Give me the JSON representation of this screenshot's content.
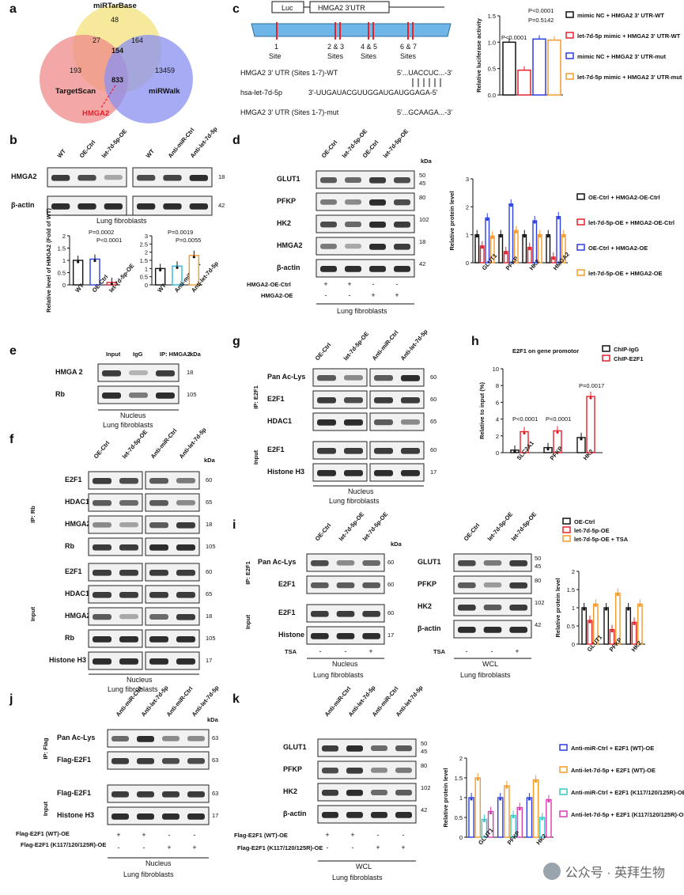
{
  "panels": {
    "a": {
      "label": "a",
      "sets": [
        "miRTarBase",
        "TargetScan",
        "miRWalk"
      ],
      "counts": [
        "48",
        "27",
        "164",
        "154",
        "193",
        "833",
        "13459"
      ],
      "target": "HMGA2"
    },
    "b": {
      "label": "b",
      "lanes_left": [
        "WT",
        "OE-Ctrl",
        "let-7d-5p-OE"
      ],
      "lanes_right": [
        "WT",
        "Anti-miR-Ctrl",
        "Anti-let-7d-5p"
      ],
      "rows": [
        "HMGA2",
        "β-actin"
      ],
      "kda": [
        "18",
        "42"
      ],
      "caption": "Lung fibroblasts",
      "ylabel": "Relative level of HMGA2 (Fold of WT)",
      "pvals": [
        "P=0.0002",
        "P<0.0001",
        "P=0.0019",
        "P=0.0055"
      ]
    },
    "c": {
      "label": "c",
      "luc": "Luc",
      "utr": "HMGA2 3'UTR",
      "sites": [
        "1\nSite",
        "2 & 3\nSites",
        "4 & 5\nSites",
        "6 & 7\nSites"
      ],
      "site_labels": [
        "1",
        "2 & 3",
        "4 & 5",
        "6 & 7"
      ],
      "site_word": [
        "Site",
        "Sites",
        "Sites",
        "Sites"
      ],
      "seq_wt_label": "HMGA2 3' UTR (Sites 1-7)-WT",
      "seq_wt": "5'...UACCUC...-3'",
      "mir_label": "hsa-let-7d-5p",
      "mir_seq": "3'-UUGAUACGUUGGAUGAUGGAGA-5'",
      "mut_label": "HMGA2 3' UTR (Sites 1-7)-mut",
      "mut_seq": "5'...GCAAGA...-3'",
      "ylabel": "Relative luciferase activity",
      "pvals": [
        "P<0.0001",
        "P<0.0001",
        "P=0.5142"
      ],
      "legend": [
        {
          "name": "mimic NC + HMGA2 3' UTR-WT",
          "color": "#111111"
        },
        {
          "name": "let-7d-5p mimic + HMGA2 3' UTR-WT",
          "color": "#e8202a"
        },
        {
          "name": "mimic NC + HMGA2 3' UTR-mut",
          "color": "#2a3fe0"
        },
        {
          "name": "let-7d-5p mimic + HMGA2 3' UTR-mut",
          "color": "#f39a2b"
        }
      ]
    },
    "d": {
      "label": "d",
      "lanes": [
        "OE-Ctrl",
        "let-7d-5p-OE",
        "OE-Ctrl",
        "let-7d-5p-OE"
      ],
      "rows": [
        "GLUT1",
        "PFKP",
        "HK2",
        "HMGA2",
        "β-actin"
      ],
      "kda_title": "kDa",
      "kda": [
        "50",
        "45",
        "80",
        "102",
        "18",
        "42"
      ],
      "ctrl_row": "HMGA2-OE-Ctrl",
      "oe_row": "HMGA2-OE",
      "ctrl_marks": [
        "+",
        "+",
        "-",
        "-"
      ],
      "oe_marks": [
        "-",
        "-",
        "+",
        "+"
      ],
      "caption": "Lung fibroblasts",
      "ylabel": "Relative protein level",
      "categories": [
        "GLUT1",
        "PFKP",
        "HK2",
        "HMGA2"
      ],
      "legend": [
        {
          "name": "OE-Ctrl + HMGA2-OE-Ctrl",
          "color": "#111111"
        },
        {
          "name": "let-7d-5p-OE + HMGA2-OE-Ctrl",
          "color": "#e8202a"
        },
        {
          "name": "OE-Ctrl + HMGA2-OE",
          "color": "#2a3fe0"
        },
        {
          "name": "let-7d-5p-OE + HMGA2-OE",
          "color": "#f39a2b"
        }
      ]
    },
    "e": {
      "label": "e",
      "lanes": [
        "Input",
        "IgG",
        "IP: HMGA2"
      ],
      "rows": [
        "HMGA 2",
        "Rb"
      ],
      "kda": [
        "18",
        "105"
      ],
      "caption1": "Nucleus",
      "caption2": "Lung fibroblasts"
    },
    "f": {
      "label": "f",
      "lanes": [
        "OE-Ctrl",
        "let-7d-5p-OE",
        "Anti-miR-Ctrl",
        "Anti-let-7d-5p"
      ],
      "ip_label": "IP: Rb",
      "input_label": "Input",
      "rows_ip": [
        "E2F1",
        "HDAC1",
        "HMGA2",
        "Rb"
      ],
      "rows_input": [
        "E2F1",
        "HDAC1",
        "HMGA2",
        "Rb",
        "Histone H3"
      ],
      "kda_ip": [
        "60",
        "65",
        "18",
        "105"
      ],
      "kda_input": [
        "60",
        "65",
        "18",
        "105",
        "17"
      ],
      "caption1": "Nucleus",
      "caption2": "Lung fibroblasts"
    },
    "g": {
      "label": "g",
      "lanes": [
        "OE-Ctrl",
        "let-7d-5p-OE",
        "Anti-miR-Ctrl",
        "Anti-let-7d-5p"
      ],
      "ip_label": "IP: E2F1",
      "input_label": "Input",
      "rows": [
        "Pan Ac-Lys",
        "E2F1",
        "HDAC1",
        "E2F1",
        "Histone H3"
      ],
      "kda": [
        "60",
        "60",
        "65",
        "60",
        "17"
      ],
      "caption1": "Nucleus",
      "caption2": "Lung fibroblasts"
    },
    "h": {
      "label": "h",
      "title": "E2F1 on gene promotor",
      "ylabel": "Relative to input (%)",
      "categories": [
        "SLC2A1",
        "PFKP",
        "HK2"
      ],
      "pvals": [
        "P<0.0001",
        "P<0.0001",
        "P=0.0017"
      ],
      "legend": [
        {
          "name": "ChIP-IgG",
          "color": "#111111"
        },
        {
          "name": "ChIP-E2F1",
          "color": "#e8202a"
        }
      ]
    },
    "i": {
      "label": "i",
      "lanes": [
        "OE-Ctrl",
        "let-7d-5p-OE",
        "let-7d-5p-OE"
      ],
      "ip_label": "IP: E2F1",
      "input_label": "Input",
      "rows_left": [
        "Pan Ac-Lys",
        "E2F1",
        "E2F1",
        "Histone H3"
      ],
      "kda_left": [
        "60",
        "60",
        "60",
        "17"
      ],
      "rows_right": [
        "GLUT1",
        "PFKP",
        "HK2",
        "β-actin"
      ],
      "kda_right": [
        "50",
        "45",
        "80",
        "102",
        "42"
      ],
      "tsa_label": "TSA",
      "tsa_marks": [
        "-",
        "-",
        "+"
      ],
      "caption_left": "Nucleus",
      "caption_right": "WCL",
      "caption2": "Lung fibroblasts",
      "ylabel": "Relative protein level",
      "categories": [
        "GLUT1",
        "PFKP",
        "HK2"
      ],
      "legend": [
        {
          "name": "OE-Ctrl",
          "color": "#111111"
        },
        {
          "name": "let-7d-5p-OE",
          "color": "#e8202a"
        },
        {
          "name": "let-7d-5p-OE + TSA",
          "color": "#f39a2b"
        }
      ]
    },
    "j": {
      "label": "j",
      "lanes": [
        "Anti-miR-Ctrl",
        "Anti-let-7d-5p",
        "Anti-miR-Ctrl",
        "Anti-let-7d-5p"
      ],
      "ip_label": "IP: Flag",
      "input_label": "Input",
      "rows": [
        "Pan Ac-Lys",
        "Flag-E2F1",
        "Flag-E2F1",
        "Histone H3"
      ],
      "kda": [
        "63",
        "63",
        "63",
        "17"
      ],
      "wt_row": "Flag-E2F1 (WT)-OE",
      "mut_row": "Flag-E2F1 (K117/120/125R)-OE",
      "wt_marks": [
        "+",
        "+",
        "-",
        "-"
      ],
      "mut_marks": [
        "-",
        "-",
        "+",
        "+"
      ],
      "caption1": "Nucleus",
      "caption2": "Lung fibroblasts"
    },
    "k": {
      "label": "k",
      "lanes": [
        "Anti-miR-Ctrl",
        "Anti-let-7d-5p",
        "Anti-miR-Ctrl",
        "Anti-let-7d-5p"
      ],
      "rows": [
        "GLUT1",
        "PFKP",
        "HK2",
        "β-actin"
      ],
      "kda": [
        "50",
        "45",
        "80",
        "102",
        "42"
      ],
      "wt_row": "Flag-E2F1 (WT)-OE",
      "mut_row": "Flag-E2F1 (K117/120/125R)-OE",
      "wt_marks": [
        "+",
        "+",
        "-",
        "-"
      ],
      "mut_marks": [
        "-",
        "-",
        "+",
        "+"
      ],
      "caption1": "WCL",
      "caption2": "Lung fibroblasts",
      "ylabel": "Relative protein level",
      "categories": [
        "GLUT1",
        "PFKP",
        "HK2"
      ],
      "legend": [
        {
          "name": "Anti-miR-Ctrl + E2F1 (WT)-OE",
          "color": "#2a3fe0"
        },
        {
          "name": "Anti-let-7d-5p + E2F1 (WT)-OE",
          "color": "#f39a2b"
        },
        {
          "name": "Anti-miR-Ctrl + E2F1 (K117/120/125R)-OE",
          "color": "#38c7c7"
        },
        {
          "name": "Anti-let-7d-5p + E2F1 (K117/120/125R)-OE",
          "color": "#d63fb0"
        }
      ]
    }
  },
  "watermark": "公众号 · 英拜生物",
  "chart_data": [
    {
      "type": "bar",
      "panel": "b-left",
      "categories": [
        "WT",
        "OE-Ctrl",
        "let-7d-5p-OE"
      ],
      "values": [
        1.0,
        1.05,
        0.1
      ],
      "ylim": [
        0,
        2.0
      ],
      "ylabel": "Relative level of HMGA2 (Fold of WT)"
    },
    {
      "type": "bar",
      "panel": "b-right",
      "categories": [
        "WT",
        "Anti-miR-Ctrl",
        "Anti-let-7d-5p"
      ],
      "values": [
        1.0,
        1.15,
        1.8
      ],
      "ylim": [
        0,
        3.0
      ]
    },
    {
      "type": "bar",
      "panel": "c",
      "categories": [
        "mimic NC + WT",
        "let-7d-5p mimic + WT",
        "mimic NC + mut",
        "let-7d-5p mimic + mut"
      ],
      "values": [
        1.0,
        0.47,
        1.06,
        1.04
      ],
      "ylim": [
        0,
        1.5
      ],
      "ylabel": "Relative luciferase activity"
    },
    {
      "type": "bar",
      "panel": "d",
      "categories": [
        "GLUT1",
        "PFKP",
        "HK2",
        "HMGA2"
      ],
      "series": [
        {
          "name": "OE-Ctrl + HMGA2-OE-Ctrl",
          "values": [
            1.0,
            1.0,
            1.0,
            1.0
          ]
        },
        {
          "name": "let-7d-5p-OE + HMGA2-OE-Ctrl",
          "values": [
            0.6,
            0.4,
            0.55,
            0.2
          ]
        },
        {
          "name": "OE-Ctrl + HMGA2-OE",
          "values": [
            1.6,
            2.1,
            1.5,
            1.65
          ]
        },
        {
          "name": "let-7d-5p-OE + HMGA2-OE",
          "values": [
            0.95,
            1.15,
            1.0,
            1.0
          ]
        }
      ],
      "ylim": [
        0,
        3
      ],
      "ylabel": "Relative protein level"
    },
    {
      "type": "bar",
      "panel": "h",
      "categories": [
        "SLC2A1",
        "PFKP",
        "HK2"
      ],
      "series": [
        {
          "name": "ChIP-IgG",
          "values": [
            0.3,
            0.6,
            1.8
          ]
        },
        {
          "name": "ChIP-E2F1",
          "values": [
            2.5,
            2.6,
            6.7
          ]
        }
      ],
      "ylim": [
        0,
        10
      ],
      "ylabel": "Relative to input (%)"
    },
    {
      "type": "bar",
      "panel": "i",
      "categories": [
        "GLUT1",
        "PFKP",
        "HK2"
      ],
      "series": [
        {
          "name": "OE-Ctrl",
          "values": [
            1.0,
            1.0,
            1.0
          ]
        },
        {
          "name": "let-7d-5p-OE",
          "values": [
            0.65,
            0.4,
            0.6
          ]
        },
        {
          "name": "let-7d-5p-OE + TSA",
          "values": [
            1.1,
            1.4,
            1.1
          ]
        }
      ],
      "ylim": [
        0,
        2.0
      ],
      "ylabel": "Relative protein level"
    },
    {
      "type": "bar",
      "panel": "k",
      "categories": [
        "GLUT1",
        "PFKP",
        "HK2"
      ],
      "series": [
        {
          "name": "Anti-miR-Ctrl + E2F1 (WT)-OE",
          "values": [
            1.0,
            1.0,
            1.0
          ]
        },
        {
          "name": "Anti-let-7d-5p + E2F1 (WT)-OE",
          "values": [
            1.5,
            1.3,
            1.45
          ]
        },
        {
          "name": "Anti-miR-Ctrl + E2F1 (K117/120/125R)-OE",
          "values": [
            0.45,
            0.55,
            0.5
          ]
        },
        {
          "name": "Anti-let-7d-5p + E2F1 (K117/120/125R)-OE",
          "values": [
            0.65,
            0.75,
            0.95
          ]
        }
      ],
      "ylim": [
        0,
        2.0
      ],
      "ylabel": "Relative protein level"
    }
  ]
}
